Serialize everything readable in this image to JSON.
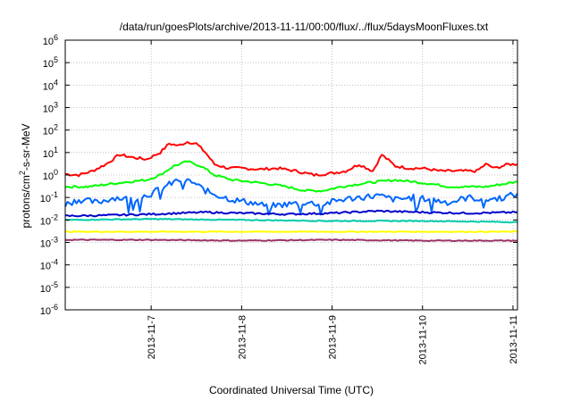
{
  "chart_data": {
    "type": "line",
    "title": "/data/run/goesPlots/archive/2013-11-11/00:00/flux/../flux/5daysMoonFluxes.txt",
    "xlabel": "Coordinated Universal Time (UTC)",
    "ylabel": {
      "base": "protons/cm",
      "sup": "2",
      "rest": "-s-sr-MeV"
    },
    "y_scale": "log",
    "ylim_exp": [
      -6,
      6
    ],
    "xlim_days": [
      6.05,
      11.05
    ],
    "grid": true,
    "legend": "none",
    "x_ticks": [
      {
        "pos": 7,
        "label": "2013-11-7"
      },
      {
        "pos": 8,
        "label": "2013-11-8"
      },
      {
        "pos": 9,
        "label": "2013-11-9"
      },
      {
        "pos": 10,
        "label": "2013-11-10"
      },
      {
        "pos": 11,
        "label": "2013-11-11"
      }
    ],
    "y_ticks": [
      {
        "exp": 6,
        "label": "10",
        "sup": "6"
      },
      {
        "exp": 5,
        "label": "10",
        "sup": "5"
      },
      {
        "exp": 4,
        "label": "10",
        "sup": "4"
      },
      {
        "exp": 3,
        "label": "10",
        "sup": "3"
      },
      {
        "exp": 2,
        "label": "10",
        "sup": "2"
      },
      {
        "exp": 1,
        "label": "10",
        "sup": "1"
      },
      {
        "exp": 0,
        "label": "10",
        "sup": "0"
      },
      {
        "exp": -1,
        "label": "10",
        "sup": "-1"
      },
      {
        "exp": -2,
        "label": "10",
        "sup": "-2"
      },
      {
        "exp": -3,
        "label": "10",
        "sup": "-3"
      },
      {
        "exp": -4,
        "label": "10",
        "sup": "-4"
      },
      {
        "exp": -5,
        "label": "10",
        "sup": "-5"
      },
      {
        "exp": -6,
        "label": "10",
        "sup": "-6"
      }
    ],
    "series": [
      {
        "color": "#ff0000",
        "x": [
          6.05,
          6.2,
          6.35,
          6.5,
          6.65,
          6.8,
          6.95,
          7.1,
          7.2,
          7.3,
          7.4,
          7.5,
          7.6,
          7.7,
          7.85,
          8.0,
          8.2,
          8.4,
          8.6,
          8.8,
          9.0,
          9.15,
          9.3,
          9.45,
          9.55,
          9.7,
          9.85,
          10.0,
          10.2,
          10.4,
          10.6,
          10.7,
          10.8,
          10.95,
          11.05
        ],
        "y": [
          1.1,
          1.0,
          1.5,
          3,
          8,
          6,
          5,
          10,
          25,
          20,
          30,
          25,
          10,
          3,
          2.0,
          2.0,
          1.8,
          2.0,
          1.5,
          1.0,
          1.2,
          1.5,
          3,
          1.5,
          8,
          2.5,
          2.0,
          2.0,
          1.5,
          1.5,
          1.5,
          3,
          2.0,
          3.0,
          3.0
        ]
      },
      {
        "color": "#00ff00",
        "x": [
          6.05,
          6.3,
          6.55,
          6.75,
          6.95,
          7.1,
          7.25,
          7.4,
          7.55,
          7.7,
          7.9,
          8.1,
          8.3,
          8.5,
          8.7,
          8.9,
          9.1,
          9.3,
          9.5,
          9.7,
          9.9,
          10.1,
          10.3,
          10.5,
          10.7,
          10.9,
          11.05
        ],
        "y": [
          0.3,
          0.3,
          0.4,
          0.5,
          0.6,
          1.0,
          2.5,
          4,
          2.5,
          1.0,
          0.6,
          0.5,
          0.4,
          0.3,
          0.2,
          0.2,
          0.3,
          0.4,
          0.5,
          0.6,
          0.5,
          0.4,
          0.3,
          0.3,
          0.3,
          0.4,
          0.5
        ]
      },
      {
        "color": "#0066ff",
        "x": [
          6.05,
          6.2,
          6.4,
          6.6,
          6.8,
          7.0,
          7.15,
          7.3,
          7.45,
          7.6,
          7.75,
          7.9,
          8.1,
          8.3,
          8.5,
          8.7,
          8.9,
          9.1,
          9.3,
          9.5,
          9.7,
          9.9,
          10.1,
          10.3,
          10.5,
          10.7,
          10.9,
          11.05
        ],
        "y": [
          0.05,
          0.08,
          0.06,
          0.1,
          0.08,
          0.15,
          0.3,
          0.6,
          0.5,
          0.2,
          0.12,
          0.08,
          0.06,
          0.04,
          0.05,
          0.06,
          0.05,
          0.08,
          0.1,
          0.12,
          0.08,
          0.1,
          0.08,
          0.06,
          0.1,
          0.08,
          0.1,
          0.15
        ]
      },
      {
        "color": "#0000cc",
        "x": [
          6.05,
          6.5,
          7.0,
          7.3,
          7.6,
          8.0,
          8.5,
          9.0,
          9.5,
          10.0,
          10.5,
          11.05
        ],
        "y": [
          0.015,
          0.016,
          0.018,
          0.02,
          0.022,
          0.02,
          0.018,
          0.02,
          0.025,
          0.022,
          0.02,
          0.022
        ]
      },
      {
        "color": "#00ccaa",
        "x": [
          6.05,
          7.0,
          8.0,
          9.0,
          10.0,
          11.05
        ],
        "y": [
          0.01,
          0.011,
          0.01,
          0.009,
          0.009,
          0.008
        ]
      },
      {
        "color": "#ffff00",
        "x": [
          6.05,
          7.0,
          8.0,
          9.0,
          10.0,
          11.05
        ],
        "y": [
          0.003,
          0.003,
          0.003,
          0.003,
          0.003,
          0.003
        ]
      },
      {
        "color": "#993366",
        "x": [
          6.05,
          7.0,
          8.0,
          9.0,
          10.0,
          11.05
        ],
        "y": [
          0.0013,
          0.0013,
          0.0012,
          0.0013,
          0.0012,
          0.0012
        ]
      }
    ]
  }
}
